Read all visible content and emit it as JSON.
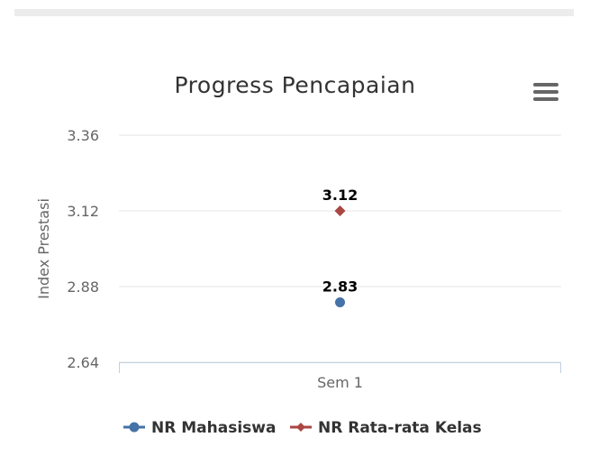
{
  "chart_data": {
    "type": "line",
    "title": "Progress Pencapaian",
    "xlabel": "",
    "ylabel": "Index Prestasi",
    "categories": [
      "Sem 1"
    ],
    "yticks": [
      "2.64",
      "2.88",
      "3.12",
      "3.36"
    ],
    "ylim": [
      2.64,
      3.36
    ],
    "grid": true,
    "legend_placement": "bottom-center",
    "series": [
      {
        "name": "NR Mahasiswa",
        "values": [
          2.83
        ],
        "label": "2.83",
        "color": "#4572A7",
        "marker": "circle"
      },
      {
        "name": "NR Rata-rata Kelas",
        "values": [
          3.12
        ],
        "label": "3.12",
        "color": "#AA4643",
        "marker": "diamond"
      }
    ]
  },
  "menu": {
    "icon": "menu-icon"
  }
}
